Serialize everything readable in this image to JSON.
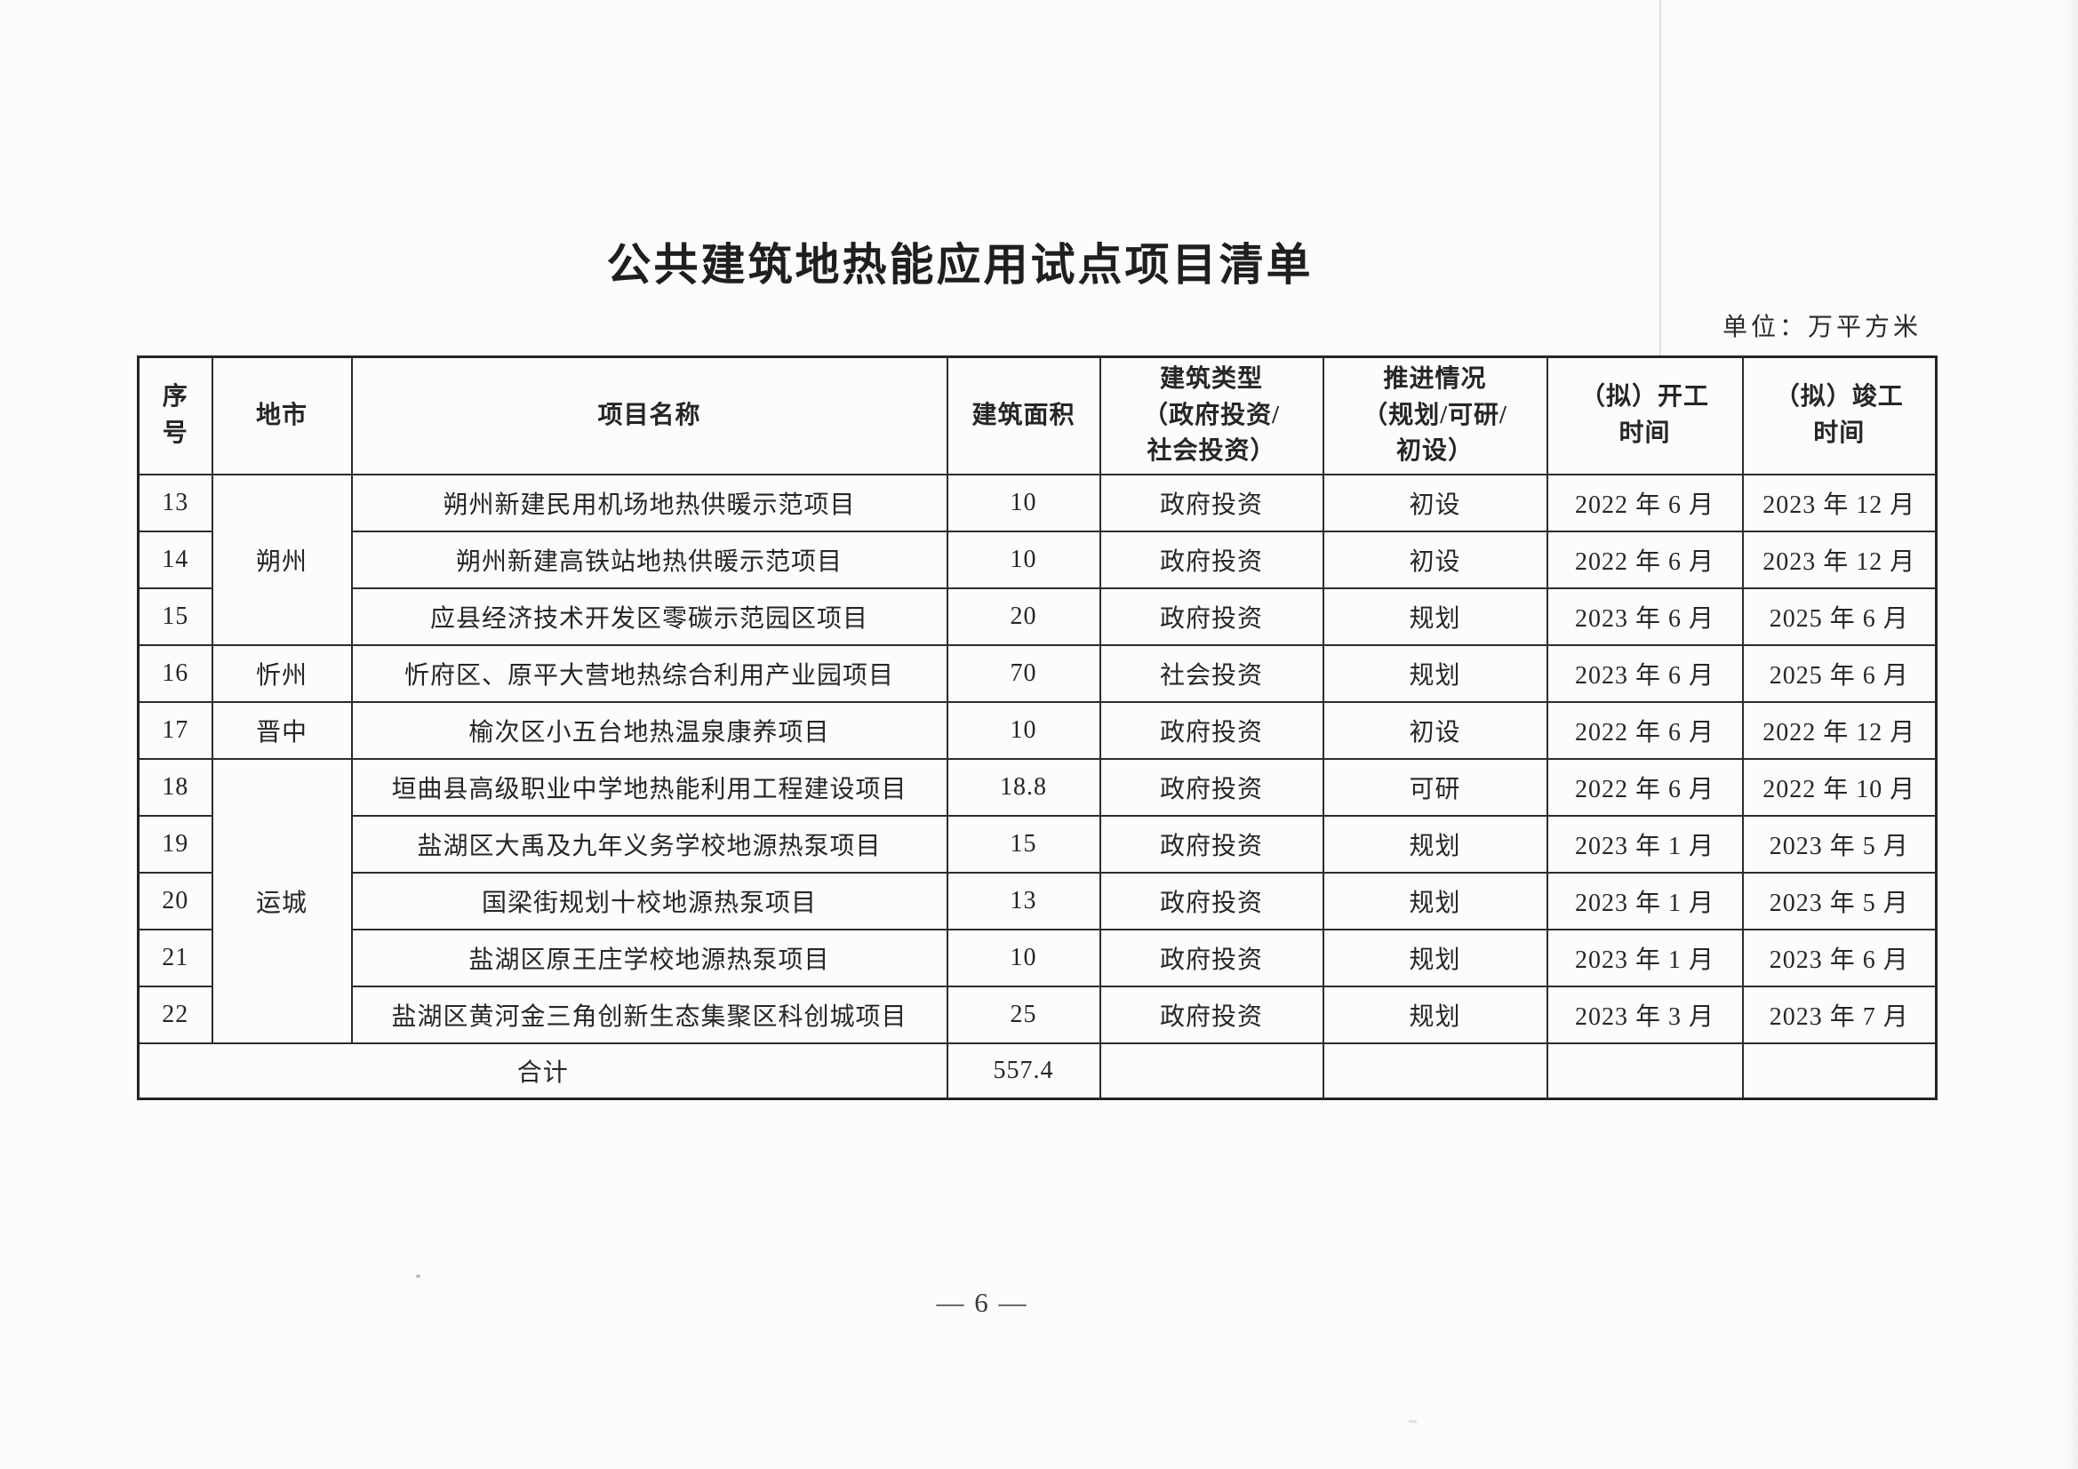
{
  "page": {
    "title": "公共建筑地热能应用试点项目清单",
    "unit_note": "单位：万平方米",
    "page_number": "— 6 —"
  },
  "table": {
    "headers": [
      {
        "name": "col-no",
        "lines": [
          "序",
          "号"
        ]
      },
      {
        "name": "col-city",
        "lines": [
          "地市"
        ]
      },
      {
        "name": "col-project-name",
        "lines": [
          "项目名称"
        ]
      },
      {
        "name": "col-area",
        "lines": [
          "建筑面积"
        ]
      },
      {
        "name": "col-building-type",
        "lines": [
          "建筑类型",
          "（政府投资/",
          "社会投资）"
        ]
      },
      {
        "name": "col-progress",
        "lines": [
          "推进情况",
          "（规划/可研/",
          "初设）"
        ]
      },
      {
        "name": "col-start-time",
        "lines": [
          "（拟）开工",
          "时间"
        ]
      },
      {
        "name": "col-end-time",
        "lines": [
          "（拟）竣工",
          "时间"
        ]
      }
    ],
    "rows": [
      {
        "no": "13",
        "city": "朔州",
        "city_span": 3,
        "name": "朔州新建民用机场地热供暖示范项目",
        "area": "10",
        "type": "政府投资",
        "status": "初设",
        "start": "2022 年 6 月",
        "end": "2023 年 12 月"
      },
      {
        "no": "14",
        "name": "朔州新建高铁站地热供暖示范项目",
        "area": "10",
        "type": "政府投资",
        "status": "初设",
        "start": "2022 年 6 月",
        "end": "2023 年 12 月"
      },
      {
        "no": "15",
        "name": "应县经济技术开发区零碳示范园区项目",
        "area": "20",
        "type": "政府投资",
        "status": "规划",
        "start": "2023 年 6 月",
        "end": "2025 年 6 月"
      },
      {
        "no": "16",
        "city": "忻州",
        "city_span": 1,
        "name": "忻府区、原平大营地热综合利用产业园项目",
        "area": "70",
        "type": "社会投资",
        "status": "规划",
        "start": "2023 年 6 月",
        "end": "2025 年 6 月"
      },
      {
        "no": "17",
        "city": "晋中",
        "city_span": 1,
        "name": "榆次区小五台地热温泉康养项目",
        "area": "10",
        "type": "政府投资",
        "status": "初设",
        "start": "2022 年 6 月",
        "end": "2022 年 12 月"
      },
      {
        "no": "18",
        "city": "运城",
        "city_span": 5,
        "name": "垣曲县高级职业中学地热能利用工程建设项目",
        "area": "18.8",
        "type": "政府投资",
        "status": "可研",
        "start": "2022 年 6 月",
        "end": "2022 年 10 月"
      },
      {
        "no": "19",
        "name": "盐湖区大禹及九年义务学校地源热泵项目",
        "area": "15",
        "type": "政府投资",
        "status": "规划",
        "start": "2023 年 1 月",
        "end": "2023 年 5 月"
      },
      {
        "no": "20",
        "name": "国梁街规划十校地源热泵项目",
        "area": "13",
        "type": "政府投资",
        "status": "规划",
        "start": "2023 年 1 月",
        "end": "2023 年 5 月"
      },
      {
        "no": "21",
        "name": "盐湖区原王庄学校地源热泵项目",
        "area": "10",
        "type": "政府投资",
        "status": "规划",
        "start": "2023 年 1 月",
        "end": "2023 年 6 月"
      },
      {
        "no": "22",
        "name": "盐湖区黄河金三角创新生态集聚区科创城项目",
        "area": "25",
        "type": "政府投资",
        "status": "规划",
        "start": "2023 年 3 月",
        "end": "2023 年 7 月"
      }
    ],
    "total": {
      "label": "合计",
      "area": "557.4"
    }
  }
}
